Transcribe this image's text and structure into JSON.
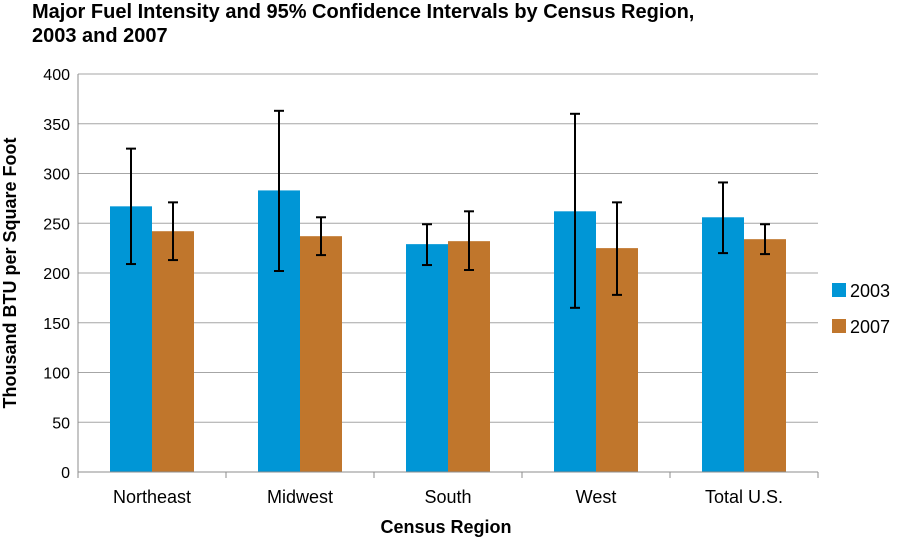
{
  "chart_data": {
    "type": "bar",
    "title": "Major Fuel Intensity and 95% Confidence Intervals by Census Region, 2003 and 2007",
    "xlabel": "Census Region",
    "ylabel": "Thousand BTU per Square Foot",
    "ylim": [
      0,
      400
    ],
    "yticks": [
      0,
      50,
      100,
      150,
      200,
      250,
      300,
      350,
      400
    ],
    "grid": true,
    "legend_position": "right",
    "categories": [
      "Northeast",
      "Midwest",
      "South",
      "West",
      "Total U.S."
    ],
    "series": [
      {
        "name": "2003",
        "color": "#0096d6",
        "values": [
          267,
          283,
          229,
          262,
          256
        ],
        "ci_low": [
          209,
          202,
          208,
          165,
          220
        ],
        "ci_high": [
          325,
          363,
          249,
          360,
          291
        ]
      },
      {
        "name": "2007",
        "color": "#c0762c",
        "values": [
          242,
          237,
          232,
          225,
          234
        ],
        "ci_low": [
          213,
          218,
          203,
          178,
          219
        ],
        "ci_high": [
          271,
          256,
          262,
          271,
          249
        ]
      }
    ]
  }
}
